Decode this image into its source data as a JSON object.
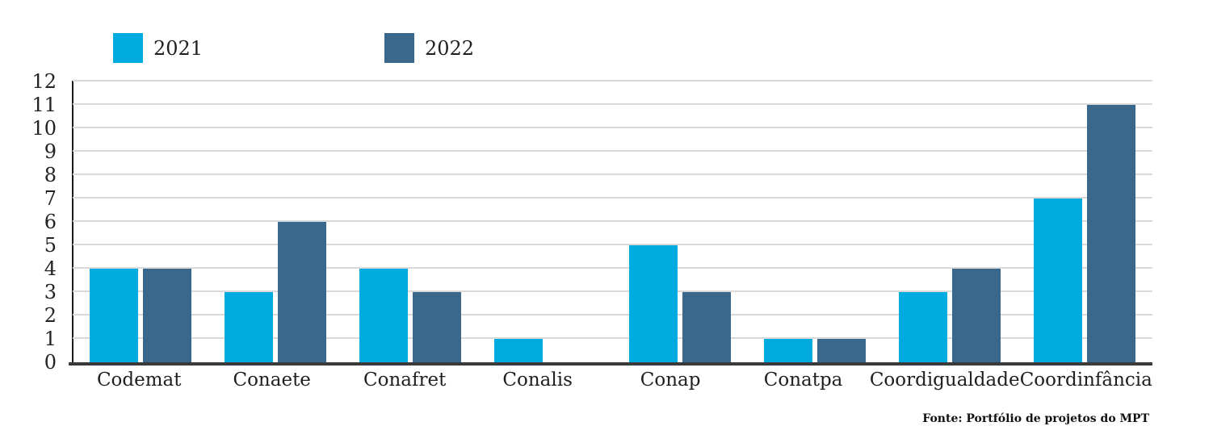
{
  "chart_data": {
    "type": "bar",
    "title": "",
    "categories": [
      "Codemat",
      "Conaete",
      "Conafret",
      "Conalis",
      "Conap",
      "Conatpa",
      "Coordigualdade",
      "Coordinfância"
    ],
    "series": [
      {
        "name": "2021",
        "color": "#00ACDF",
        "values": [
          4,
          3,
          4,
          1,
          5,
          1,
          3,
          7
        ]
      },
      {
        "name": "2022",
        "color": "#39688C",
        "values": [
          4,
          6,
          3,
          0,
          3,
          1,
          4,
          11
        ]
      }
    ],
    "ylim": [
      0,
      12
    ],
    "ytick_step": 1,
    "grid": "horizontal",
    "legend_position": "top-left"
  },
  "source_note": "Fonte: Portfólio de projetos do MPT",
  "colors": {
    "gridline": "#D9D9D9",
    "y_axis": "#1A1A1A",
    "x_axis": "#3A3A3A",
    "text": "#1F1F1F",
    "background": "#FFFFFF"
  }
}
